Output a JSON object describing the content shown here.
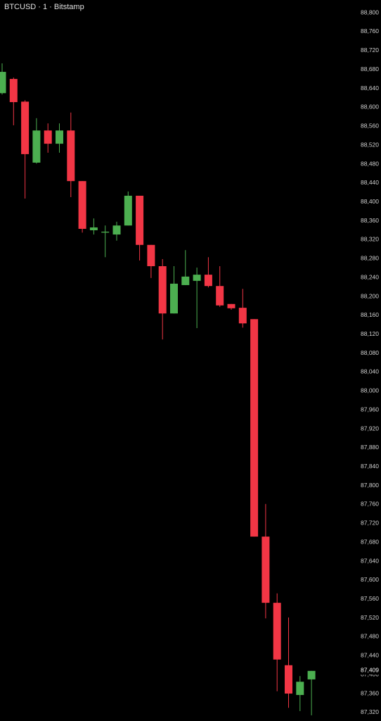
{
  "chart_data": {
    "type": "candlestick",
    "title": "BTCUSD · 1 · Bitstamp",
    "open": [
      88630,
      88660,
      88612,
      88483,
      88551,
      88523,
      88551,
      88444,
      88340,
      88335,
      88331,
      88350,
      88413,
      88309,
      88264,
      88164,
      88224,
      88233,
      88246,
      88222,
      88184,
      88176,
      88152,
      87692,
      87552,
      87420,
      87357,
      87390
    ],
    "high": [
      88693,
      88663,
      88615,
      88577,
      88566,
      88566,
      88589,
      88444,
      88365,
      88350,
      88358,
      88422,
      88413,
      88309,
      88279,
      88264,
      88298,
      88261,
      88283,
      88264,
      88184,
      88216,
      88152,
      87761,
      87572,
      87521,
      87397,
      87408
    ],
    "low": [
      88627,
      88562,
      88407,
      88481,
      88504,
      88504,
      88410,
      88335,
      88331,
      88283,
      88318,
      88350,
      88276,
      88239,
      88109,
      88164,
      88224,
      88133,
      88219,
      88178,
      88172,
      88134,
      87692,
      87519,
      87365,
      87330,
      87323,
      87314
    ],
    "close": [
      88675,
      88611,
      88501,
      88551,
      88523,
      88551,
      88444,
      88343,
      88346,
      88337,
      88350,
      88413,
      88309,
      88264,
      88164,
      88227,
      88242,
      88246,
      88222,
      88181,
      88175,
      88143,
      87692,
      87552,
      87432,
      87360,
      87385,
      87408
    ],
    "up_color": "#4caf50",
    "down_color": "#f23645",
    "last_price": {
      "value": 87409,
      "label": "87,409"
    },
    "ylim": [
      87302,
      88827
    ],
    "yticks": [
      {
        "value": 88800,
        "label": "88,800"
      },
      {
        "value": 88760,
        "label": "88,760"
      },
      {
        "value": 88720,
        "label": "88,720"
      },
      {
        "value": 88680,
        "label": "88,680"
      },
      {
        "value": 88640,
        "label": "88,640"
      },
      {
        "value": 88600,
        "label": "88,600"
      },
      {
        "value": 88560,
        "label": "88,560"
      },
      {
        "value": 88520,
        "label": "88,520"
      },
      {
        "value": 88480,
        "label": "88,480"
      },
      {
        "value": 88440,
        "label": "88,440"
      },
      {
        "value": 88400,
        "label": "88,400"
      },
      {
        "value": 88360,
        "label": "88,360"
      },
      {
        "value": 88320,
        "label": "88,320"
      },
      {
        "value": 88280,
        "label": "88,280"
      },
      {
        "value": 88240,
        "label": "88,240"
      },
      {
        "value": 88200,
        "label": "88,200"
      },
      {
        "value": 88160,
        "label": "88,160"
      },
      {
        "value": 88120,
        "label": "88,120"
      },
      {
        "value": 88080,
        "label": "88,080"
      },
      {
        "value": 88040,
        "label": "88,040"
      },
      {
        "value": 88000,
        "label": "88,000"
      },
      {
        "value": 87960,
        "label": "87,960"
      },
      {
        "value": 87920,
        "label": "87,920"
      },
      {
        "value": 87880,
        "label": "87,880"
      },
      {
        "value": 87840,
        "label": "87,840"
      },
      {
        "value": 87800,
        "label": "87,800"
      },
      {
        "value": 87760,
        "label": "87,760"
      },
      {
        "value": 87720,
        "label": "87,720"
      },
      {
        "value": 87680,
        "label": "87,680"
      },
      {
        "value": 87640,
        "label": "87,640"
      },
      {
        "value": 87600,
        "label": "87,600"
      },
      {
        "value": 87560,
        "label": "87,560"
      },
      {
        "value": 87520,
        "label": "87,520"
      },
      {
        "value": 87480,
        "label": "87,480"
      },
      {
        "value": 87440,
        "label": "87,440"
      },
      {
        "value": 87400,
        "label": "87,400"
      },
      {
        "value": 87360,
        "label": "87,360"
      },
      {
        "value": 87320,
        "label": "87,320"
      }
    ],
    "grid": false
  }
}
